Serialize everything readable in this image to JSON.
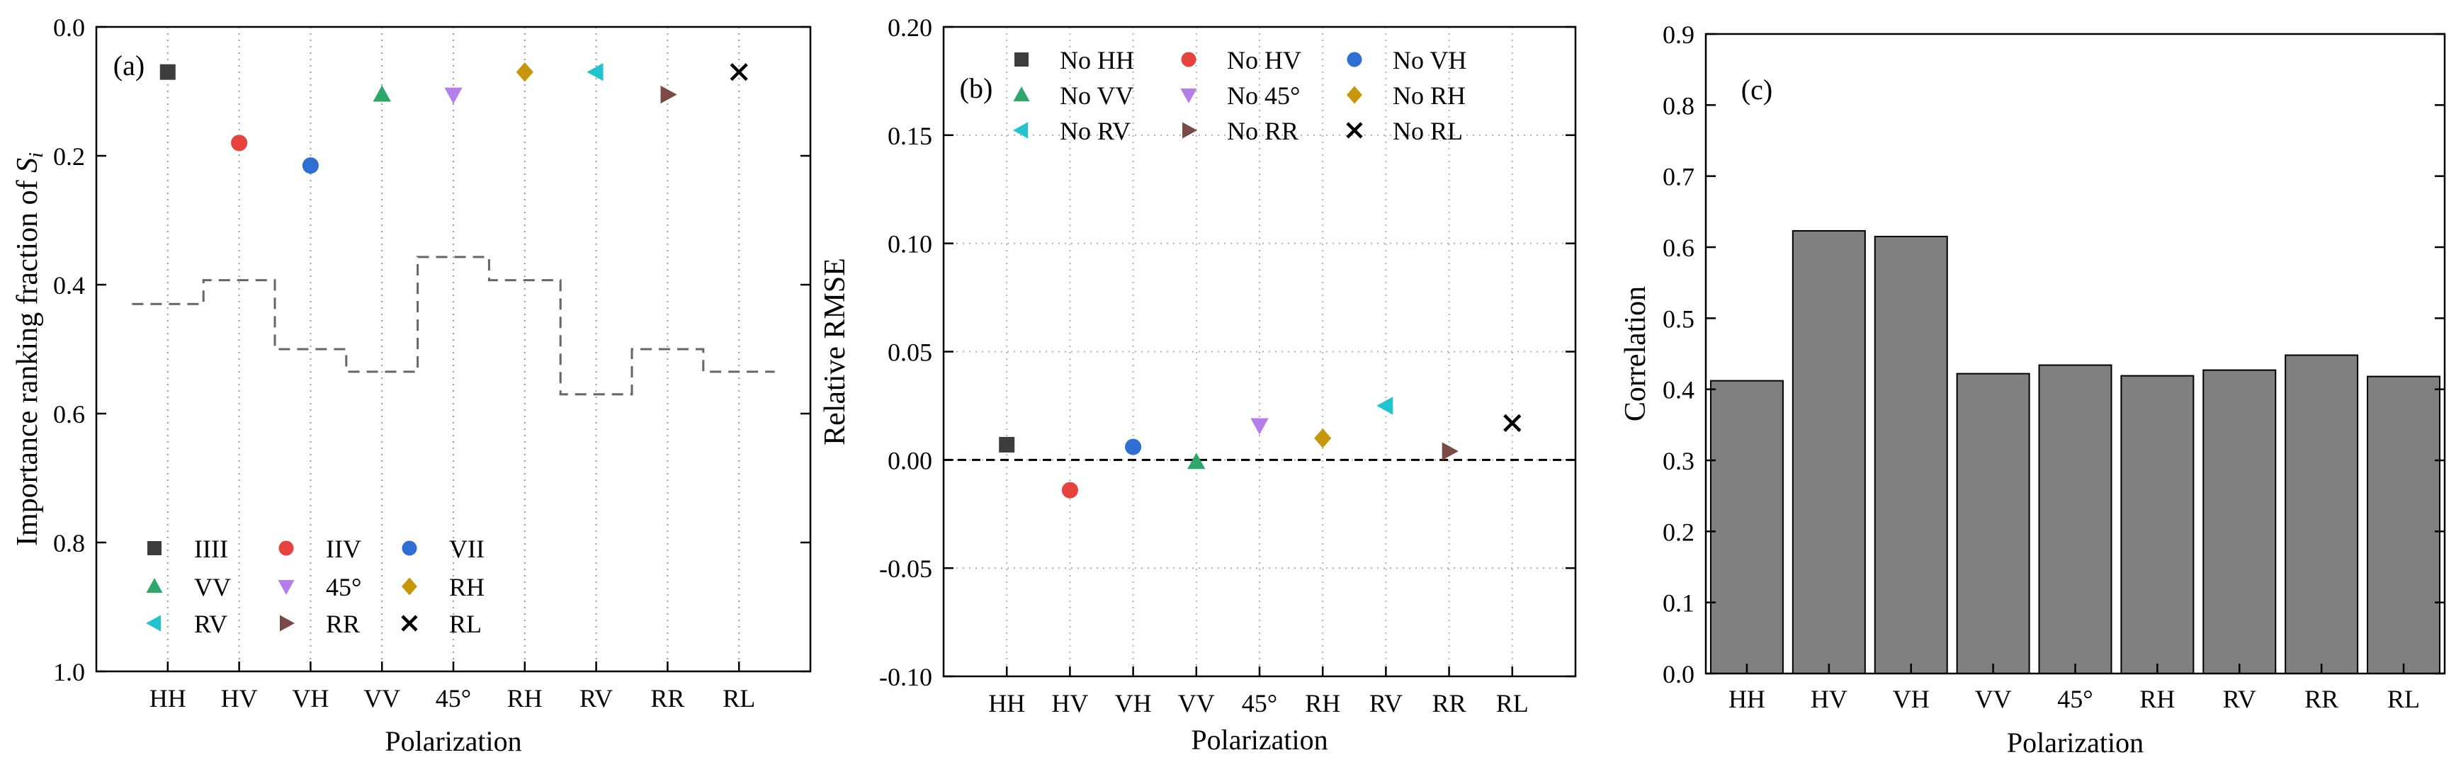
{
  "chart_data": [
    {
      "panel_label": "(a)",
      "type": "scatter",
      "xlabel": "Polarization",
      "ylabel_main": "Importance ranking fraction of ",
      "ylabel_symbol": "S",
      "ylabel_sub": "i",
      "categories": [
        "HH",
        "HV",
        "VH",
        "VV",
        "45°",
        "RH",
        "RV",
        "RR",
        "RL"
      ],
      "ylim": [
        0.0,
        1.0
      ],
      "y_reversed": true,
      "yticks": [
        "0.0",
        "0.2",
        "0.4",
        "0.6",
        "0.8",
        "1.0"
      ],
      "grid": "vertical dotted at categories",
      "series": [
        {
          "name": "HH",
          "marker": "square",
          "color": "#3d3d3d",
          "x": "HH",
          "y": 0.07
        },
        {
          "name": "HV",
          "marker": "circle",
          "color": "#e8423f",
          "x": "HV",
          "y": 0.18
        },
        {
          "name": "VH",
          "marker": "circle",
          "color": "#2f6fd3",
          "x": "VH",
          "y": 0.215
        },
        {
          "name": "VV",
          "marker": "triangle-up",
          "color": "#2ea76b",
          "x": "VV",
          "y": 0.105
        },
        {
          "name": "45°",
          "marker": "triangle-down",
          "color": "#b57ee8",
          "x": "45°",
          "y": 0.105
        },
        {
          "name": "RH",
          "marker": "diamond",
          "color": "#c8960a",
          "x": "RH",
          "y": 0.07
        },
        {
          "name": "RV",
          "marker": "triangle-left",
          "color": "#21c3cf",
          "x": "RV",
          "y": 0.07
        },
        {
          "name": "RR",
          "marker": "triangle-right",
          "color": "#7a4a44",
          "x": "RR",
          "y": 0.105
        },
        {
          "name": "RL",
          "marker": "x",
          "color": "#000000",
          "x": "RL",
          "y": 0.07
        }
      ],
      "step_line": {
        "style": "dashed",
        "color": "#666666",
        "values": [
          0.43,
          0.393,
          0.5,
          0.535,
          0.357,
          0.393,
          0.57,
          0.5,
          0.535
        ]
      },
      "legend": {
        "placement": "bottom-left",
        "labels": [
          "IIII",
          "IIV",
          "VII",
          "VV",
          "45°",
          "RH",
          "RV",
          "RR",
          "RL"
        ]
      }
    },
    {
      "panel_label": "(b)",
      "type": "scatter",
      "xlabel": "Polarization",
      "ylabel": "Relative RMSE",
      "categories": [
        "HH",
        "HV",
        "VH",
        "VV",
        "45°",
        "RH",
        "RV",
        "RR",
        "RL"
      ],
      "ylim": [
        -0.1,
        0.2
      ],
      "yticks": [
        "-0.10",
        "-0.05",
        "0.00",
        "0.05",
        "0.10",
        "0.15",
        "0.20"
      ],
      "grid": "dotted both axes",
      "reference_line": {
        "y": 0.0,
        "style": "dashed"
      },
      "series": [
        {
          "name": "No HH",
          "marker": "square",
          "color": "#3d3d3d",
          "x": "HH",
          "y": 0.007
        },
        {
          "name": "No HV",
          "marker": "circle",
          "color": "#e8423f",
          "x": "HV",
          "y": -0.014
        },
        {
          "name": "No VH",
          "marker": "circle",
          "color": "#2f6fd3",
          "x": "VH",
          "y": 0.006
        },
        {
          "name": "No VV",
          "marker": "triangle-up",
          "color": "#2ea76b",
          "x": "VV",
          "y": -0.001
        },
        {
          "name": "No 45°",
          "marker": "triangle-down",
          "color": "#b57ee8",
          "x": "45°",
          "y": 0.016
        },
        {
          "name": "No RH",
          "marker": "diamond",
          "color": "#c8960a",
          "x": "RH",
          "y": 0.01
        },
        {
          "name": "No RV",
          "marker": "triangle-left",
          "color": "#21c3cf",
          "x": "RV",
          "y": 0.025
        },
        {
          "name": "No RR",
          "marker": "triangle-right",
          "color": "#7a4a44",
          "x": "RR",
          "y": 0.004
        },
        {
          "name": "No RL",
          "marker": "x",
          "color": "#000000",
          "x": "RL",
          "y": 0.017
        }
      ],
      "legend": {
        "placement": "top-left"
      }
    },
    {
      "panel_label": "(c)",
      "type": "bar",
      "xlabel": "Polarization",
      "ylabel": "Correlation",
      "categories": [
        "HH",
        "HV",
        "VH",
        "VV",
        "45°",
        "RH",
        "RV",
        "RR",
        "RL"
      ],
      "values": [
        0.412,
        0.623,
        0.615,
        0.422,
        0.434,
        0.419,
        0.427,
        0.448,
        0.418
      ],
      "ylim": [
        0.0,
        0.9
      ],
      "yticks": [
        "0.0",
        "0.1",
        "0.2",
        "0.3",
        "0.4",
        "0.5",
        "0.6",
        "0.7",
        "0.8",
        "0.9"
      ],
      "bar_color": "#808080",
      "grid": false
    }
  ]
}
